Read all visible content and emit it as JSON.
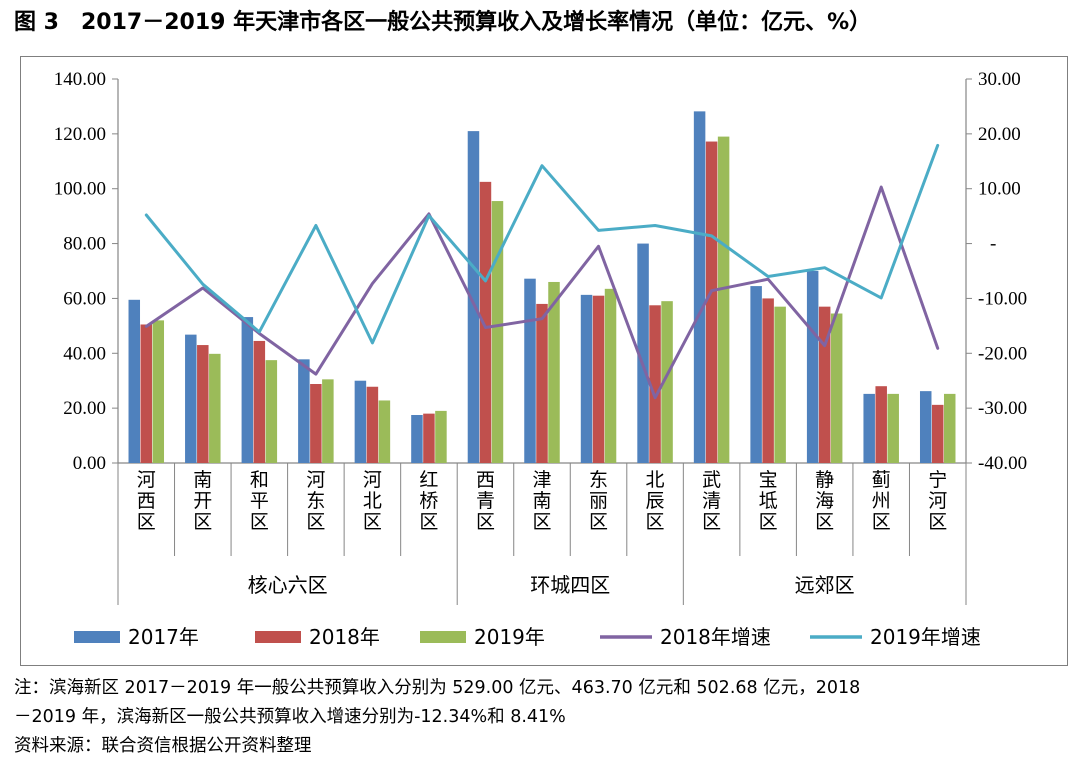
{
  "title": "图 3　2017－2019 年天津市各区一般公共预算收入及增长率情况（单位：亿元、%）",
  "chart_data": {
    "type": "bar",
    "categories": [
      "河西区",
      "南开区",
      "和平区",
      "河东区",
      "河北区",
      "红桥区",
      "西青区",
      "津南区",
      "东丽区",
      "北辰区",
      "武清区",
      "宝坻区",
      "静海区",
      "蓟州区",
      "宁河区"
    ],
    "groups": [
      {
        "label": "核心六区",
        "count": 6
      },
      {
        "label": "环城四区",
        "count": 4
      },
      {
        "label": "远郊区",
        "count": 5
      }
    ],
    "series": [
      {
        "name": "2017年",
        "kind": "bar",
        "axis": "left",
        "color": "#4f81bd",
        "values": [
          59.5,
          46.8,
          53.2,
          37.8,
          30.0,
          17.5,
          121.0,
          67.2,
          61.3,
          80.0,
          128.2,
          64.5,
          70.0,
          25.2,
          26.2
        ]
      },
      {
        "name": "2018年",
        "kind": "bar",
        "axis": "left",
        "color": "#c0504d",
        "values": [
          50.5,
          43.0,
          44.5,
          28.8,
          27.8,
          18.0,
          102.5,
          58.0,
          61.0,
          57.5,
          117.2,
          60.0,
          57.0,
          28.0,
          21.2
        ]
      },
      {
        "name": "2019年",
        "kind": "bar",
        "axis": "left",
        "color": "#9bbb59",
        "values": [
          52.0,
          39.8,
          37.5,
          30.5,
          22.8,
          19.0,
          95.5,
          66.0,
          63.5,
          59.0,
          119.0,
          57.0,
          54.5,
          25.2,
          25.2
        ]
      },
      {
        "name": "2018年增速",
        "kind": "line",
        "axis": "right",
        "color": "#8064a2",
        "values": [
          -15.1,
          -8.1,
          -16.4,
          -23.8,
          -7.3,
          5.4,
          -15.3,
          -13.7,
          -0.5,
          -28.1,
          -8.6,
          -6.5,
          -18.6,
          10.3,
          -19.1
        ]
      },
      {
        "name": "2019年增速",
        "kind": "line",
        "axis": "right",
        "color": "#4bacc6",
        "values": [
          5.2,
          -7.4,
          -16.1,
          3.3,
          -18.1,
          5.1,
          -6.8,
          14.2,
          2.4,
          3.3,
          1.4,
          -6.0,
          -4.4,
          -9.9,
          17.9
        ]
      }
    ],
    "ylim_left": [
      0,
      140
    ],
    "yticks_left": [
      "140.00",
      "120.00",
      "100.00",
      "80.00",
      "60.00",
      "40.00",
      "20.00",
      "0.00"
    ],
    "ylim_right": [
      -40,
      30
    ],
    "yticks_right": [
      "30.00",
      "20.00",
      "10.00",
      "-",
      "-10.00",
      "-20.00",
      "-30.00",
      "-40.00"
    ],
    "grid": false,
    "legend_position": "bottom"
  },
  "notes": {
    "line1": "注：滨海新区 2017－2019 年一般公共预算收入分别为 529.00 亿元、463.70 亿元和 502.68 亿元，2018",
    "line2": "－2019 年，滨海新区一般公共预算收入增速分别为-12.34%和 8.41%",
    "source": "资料来源：联合资信根据公开资料整理"
  }
}
